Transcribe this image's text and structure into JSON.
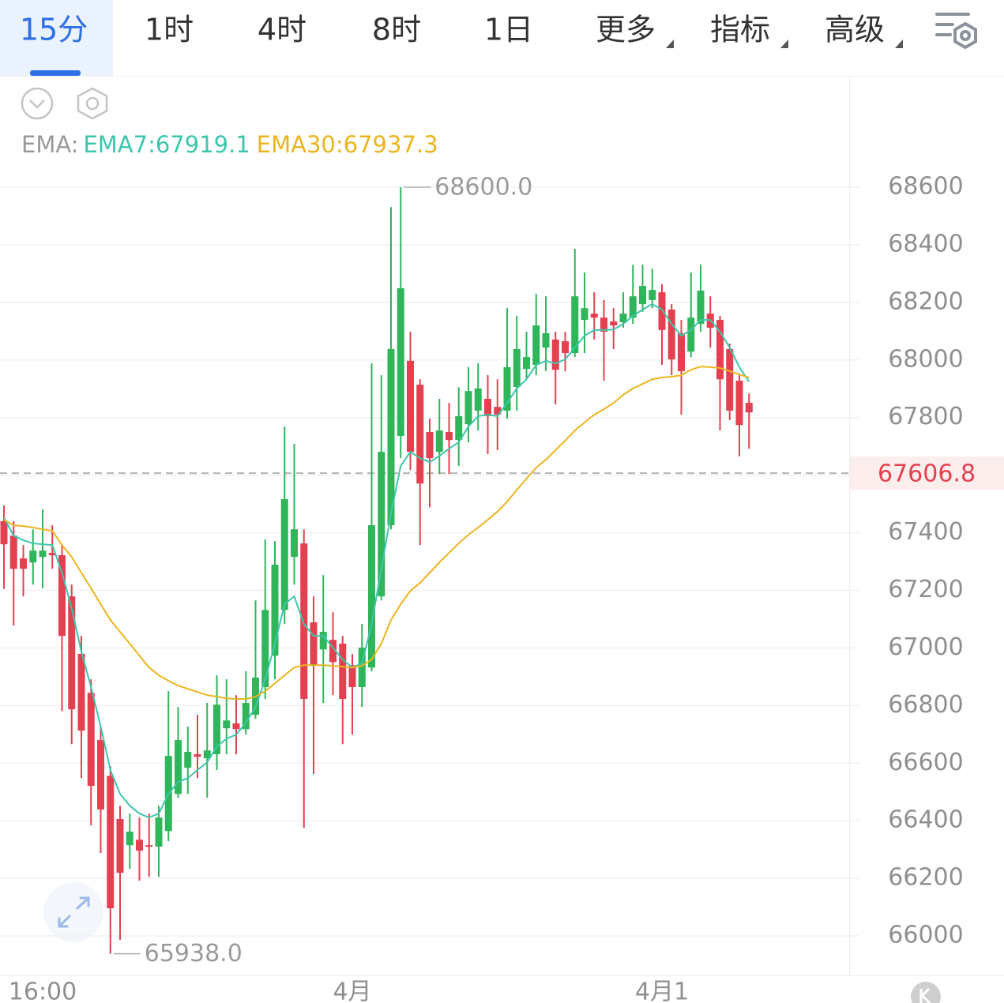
{
  "chart_data": {
    "type": "candlestick",
    "tabs": [
      {
        "label": "15分",
        "active": true
      },
      {
        "label": "1时"
      },
      {
        "label": "4时"
      },
      {
        "label": "8时"
      },
      {
        "label": "1日"
      },
      {
        "label": "更多",
        "menu": true
      },
      {
        "label": "指标",
        "menu": true
      },
      {
        "label": "高级",
        "menu": true
      }
    ],
    "legend_prefix": "EMA:",
    "categories": [
      null,
      null,
      null,
      null,
      "16:00",
      null,
      null,
      null,
      null,
      null,
      null,
      null,
      null,
      null,
      null,
      null,
      null,
      null,
      null,
      null,
      null,
      null,
      null,
      null,
      null,
      null,
      null,
      null,
      null,
      null,
      null,
      null,
      null,
      null,
      null,
      null,
      "4月",
      null,
      null,
      null,
      null,
      null,
      null,
      null,
      null,
      null,
      null,
      null,
      null,
      null,
      null,
      null,
      null,
      null,
      null,
      null,
      null,
      null,
      null,
      null,
      null,
      null,
      null,
      null,
      null,
      null,
      null,
      null,
      "4月1",
      null,
      null,
      null,
      null,
      null,
      null,
      null,
      null,
      null
    ],
    "open": [
      67440,
      67390,
      67311,
      67297,
      67316,
      67330,
      67322,
      67179,
      66979,
      66844,
      66680,
      66556,
      66406,
      66315,
      66334,
      66315,
      66310,
      66364,
      66493,
      66584,
      66631,
      66617,
      66631,
      66721,
      66738,
      66718,
      66768,
      66864,
      66973,
      67132,
      67316,
      67363,
      67089,
      66995,
      67028,
      67015,
      66940,
      66864,
      66932,
      67179,
      67426,
      67736,
      67997,
      67914,
      67750,
      67681,
      67750,
      67722,
      67777,
      67824,
      67865,
      67837,
      67824,
      67906,
      67969,
      67983,
      68043,
      68071,
      68065,
      68024,
      68139,
      68161,
      68147,
      68134,
      68131,
      68147,
      68194,
      68208,
      68235,
      68175,
      68093,
      68029,
      68125,
      68161,
      68139,
      68038,
      67928,
      67851
    ],
    "high": [
      67495,
      67440,
      67357,
      67412,
      67481,
      67426,
      67357,
      67220,
      67042,
      66891,
      66727,
      66589,
      66452,
      66425,
      66411,
      66425,
      66452,
      66850,
      66795,
      66727,
      66768,
      66809,
      66905,
      66891,
      66836,
      66919,
      67165,
      67377,
      67371,
      67769,
      67709,
      67412,
      67179,
      67253,
      67124,
      67042,
      66979,
      67083,
      67988,
      67947,
      68531,
      68600,
      68098,
      67933,
      67796,
      67865,
      67851,
      67906,
      67975,
      67988,
      67947,
      67933,
      68180,
      68153,
      68098,
      68230,
      68221,
      68098,
      68098,
      68386,
      68304,
      68235,
      68208,
      68180,
      68235,
      68331,
      68331,
      68317,
      68263,
      68194,
      68139,
      68304,
      68331,
      68221,
      68153,
      68057,
      67947,
      67884
    ],
    "low": [
      67205,
      67078,
      67179,
      67220,
      67207,
      67275,
      66781,
      66666,
      66548,
      66384,
      66288,
      65938,
      65986,
      66233,
      66192,
      66205,
      66205,
      66329,
      66480,
      66493,
      66548,
      66480,
      66576,
      66631,
      66631,
      66699,
      66754,
      66823,
      66891,
      67083,
      67220,
      66375,
      66562,
      66809,
      66836,
      66666,
      66699,
      66795,
      66919,
      67165,
      67412,
      67659,
      67618,
      67357,
      67489,
      67604,
      67604,
      67632,
      67714,
      67755,
      67673,
      67687,
      67796,
      67824,
      67933,
      67947,
      67961,
      67846,
      67961,
      68010,
      68024,
      68071,
      67928,
      68038,
      68112,
      68125,
      68167,
      68180,
      67983,
      67947,
      67810,
      68010,
      68098,
      68043,
      67755,
      67791,
      67665,
      67692
    ],
    "close": [
      67360,
      67275,
      67275,
      67338,
      67338,
      67322,
      67042,
      66787,
      66713,
      66521,
      66439,
      66096,
      66219,
      66362,
      66296,
      66310,
      66411,
      66625,
      66680,
      66639,
      66622,
      66644,
      66803,
      66748,
      66718,
      66809,
      66897,
      67132,
      67289,
      67517,
      67412,
      66823,
      66940,
      67056,
      66951,
      66823,
      66864,
      67001,
      67426,
      67681,
      68038,
      68249,
      67681,
      67571,
      67659,
      67755,
      67722,
      67805,
      67892,
      67901,
      67805,
      67810,
      67975,
      68038,
      68010,
      68120,
      68093,
      67966,
      68024,
      68221,
      68180,
      68147,
      68098,
      68120,
      68161,
      68221,
      68257,
      68243,
      68104,
      68002,
      67961,
      68147,
      68241,
      68112,
      67933,
      67824,
      67774,
      67818
    ],
    "up_color": "#2fb55a",
    "down_color": "#e4404f",
    "series": [
      {
        "label": "EMA7:67919.1",
        "color": "#3cc6ad",
        "values": [
          67453,
          67390,
          67374,
          67363,
          67360,
          67357,
          67261,
          67138,
          66987,
          66864,
          66727,
          66576,
          66493,
          66452,
          66425,
          66411,
          66425,
          66493,
          66535,
          66548,
          66576,
          66603,
          66658,
          66685,
          66699,
          66740,
          66795,
          66891,
          67015,
          67152,
          67179,
          67083,
          67042,
          67042,
          67001,
          66960,
          66932,
          66946,
          67083,
          67275,
          67467,
          67632,
          67681,
          67659,
          67645,
          67667,
          67692,
          67714,
          67769,
          67805,
          67810,
          67805,
          67851,
          67901,
          67933,
          67983,
          67997,
          67988,
          68002,
          68043,
          68084,
          68104,
          68104,
          68106,
          68125,
          68153,
          68175,
          68194,
          68175,
          68125,
          68084,
          68104,
          68139,
          68139,
          68098,
          68043,
          67975,
          67925
        ]
      },
      {
        "label": "EMA30:67937.3",
        "color": "#ebb51f",
        "values": [
          67445,
          67426,
          67423,
          67418,
          67412,
          67407,
          67357,
          67316,
          67261,
          67207,
          67152,
          67097,
          67056,
          67015,
          66973,
          66932,
          66905,
          66886,
          66869,
          66858,
          66847,
          66836,
          66831,
          66825,
          66823,
          66823,
          66831,
          66850,
          66877,
          66905,
          66932,
          66940,
          66940,
          66940,
          66938,
          66935,
          66932,
          66938,
          66960,
          67015,
          67097,
          67152,
          67198,
          67226,
          67261,
          67297,
          67330,
          67363,
          67393,
          67418,
          67445,
          67473,
          67508,
          67549,
          67588,
          67626,
          67654,
          67687,
          67720,
          67755,
          67783,
          67810,
          67829,
          67851,
          67879,
          67901,
          67917,
          67933,
          67939,
          67942,
          67947,
          67966,
          67977,
          67975,
          67972,
          67961,
          67950,
          67939
        ]
      }
    ],
    "ylim": [
      65900,
      68950
    ],
    "yticks": [
      66000,
      66200,
      66400,
      66600,
      66800,
      67000,
      67200,
      67400,
      67600,
      67800,
      68000,
      68200,
      68400,
      68600
    ],
    "grid": true,
    "last_price": 67606.8,
    "max_label": {
      "value": 68600,
      "label": "68600.0"
    },
    "min_label": {
      "value": 65938,
      "label": "65938.0"
    }
  }
}
